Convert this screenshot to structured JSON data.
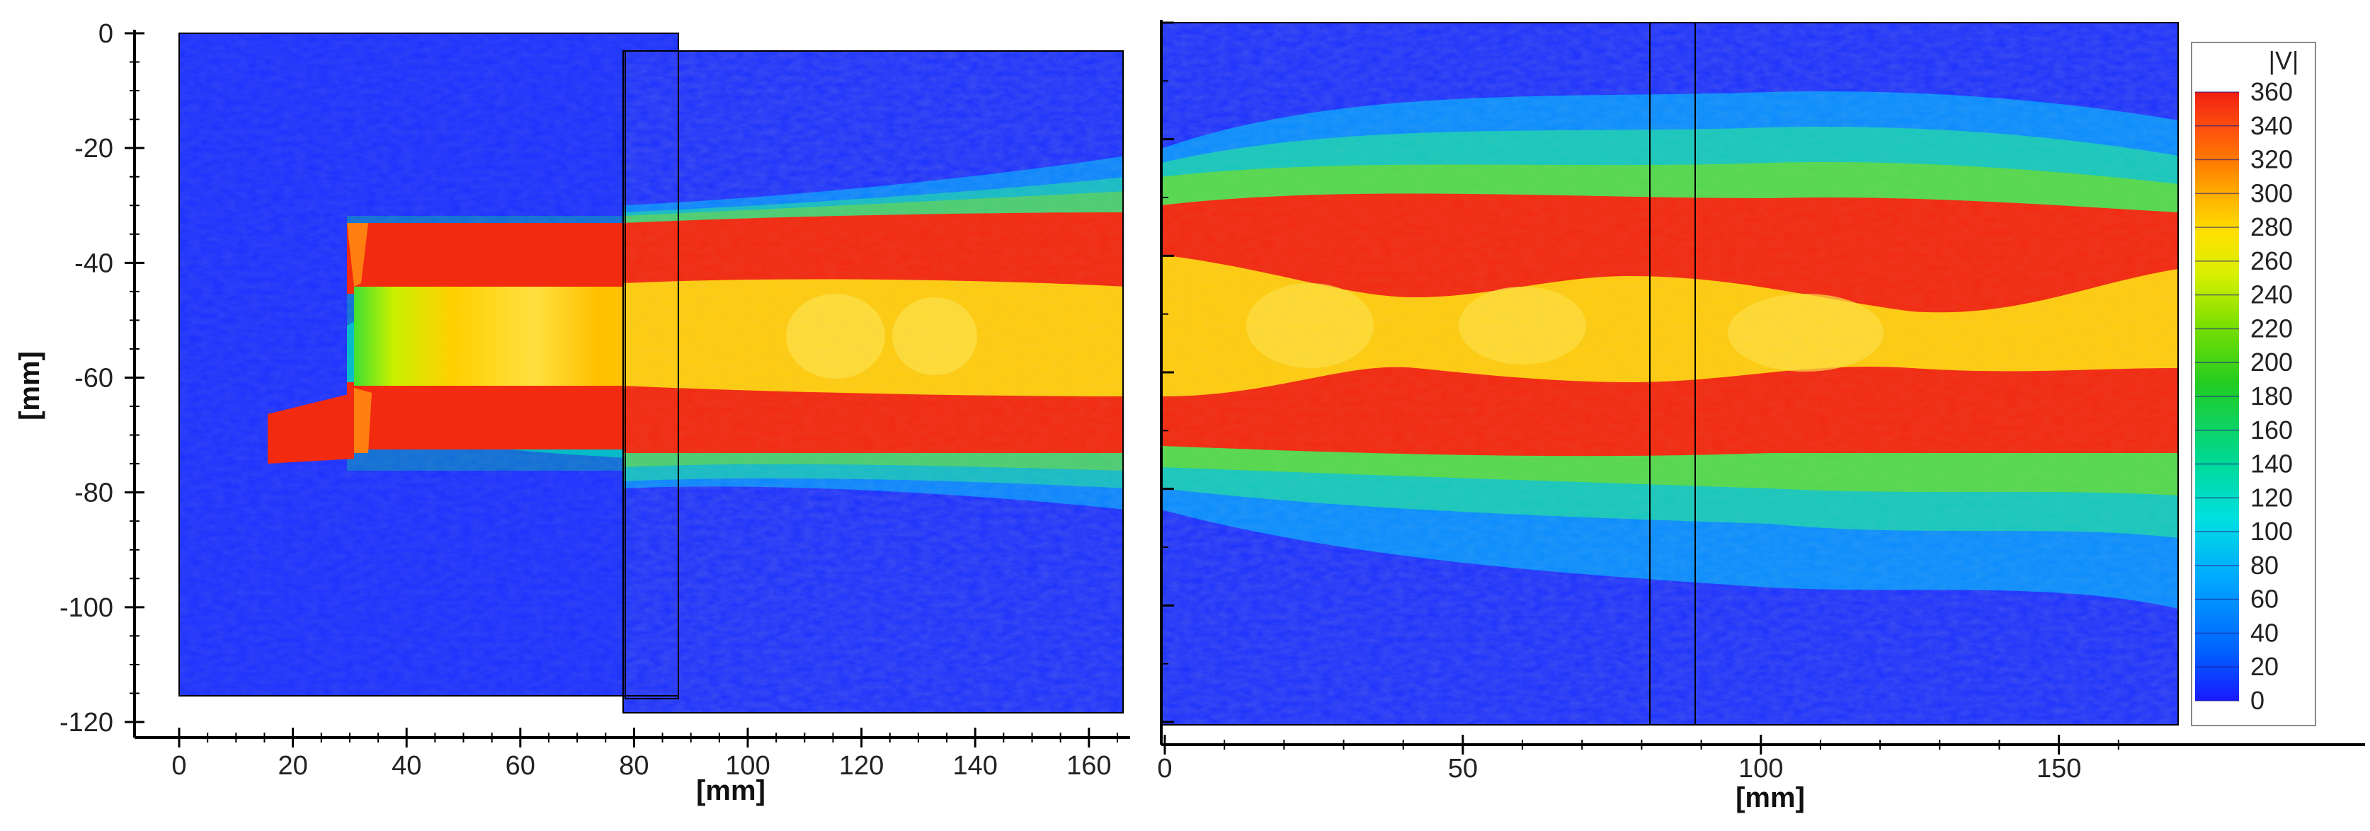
{
  "chart_data": [
    {
      "type": "heatmap",
      "panel": "left",
      "xlabel": "[mm]",
      "ylabel": "[mm]",
      "xlim": [
        0,
        166
      ],
      "ylim": [
        -120,
        0
      ],
      "xticks": [
        0,
        20,
        40,
        60,
        80,
        100,
        120,
        140,
        160
      ],
      "yticks": [
        0,
        -20,
        -40,
        -60,
        -80,
        -100,
        -120
      ],
      "value_range": [
        0,
        360
      ],
      "field": {
        "nozzle_exit_x": 32,
        "jet_upper_edge_y": -34,
        "jet_lower_edge_y": -76,
        "core_center_y": -53,
        "mixing_spread": 30
      }
    },
    {
      "type": "heatmap",
      "panel": "right",
      "xlabel": "[mm]",
      "ylabel": "",
      "xlim": [
        0,
        170
      ],
      "xticks": [
        0,
        50,
        100,
        150
      ],
      "value_range": [
        0,
        360
      ]
    }
  ],
  "colorbar": {
    "title": "|V|",
    "ticks": [
      360,
      340,
      320,
      300,
      280,
      260,
      240,
      220,
      200,
      180,
      160,
      140,
      120,
      100,
      80,
      60,
      40,
      20,
      0
    ],
    "colors": [
      "#1a1aff",
      "#0060ff",
      "#00a8ff",
      "#00e0e0",
      "#00d890",
      "#22cc22",
      "#7fe000",
      "#d8f000",
      "#ffe000",
      "#ffb000",
      "#ff8000",
      "#ff5010",
      "#f02010"
    ]
  }
}
